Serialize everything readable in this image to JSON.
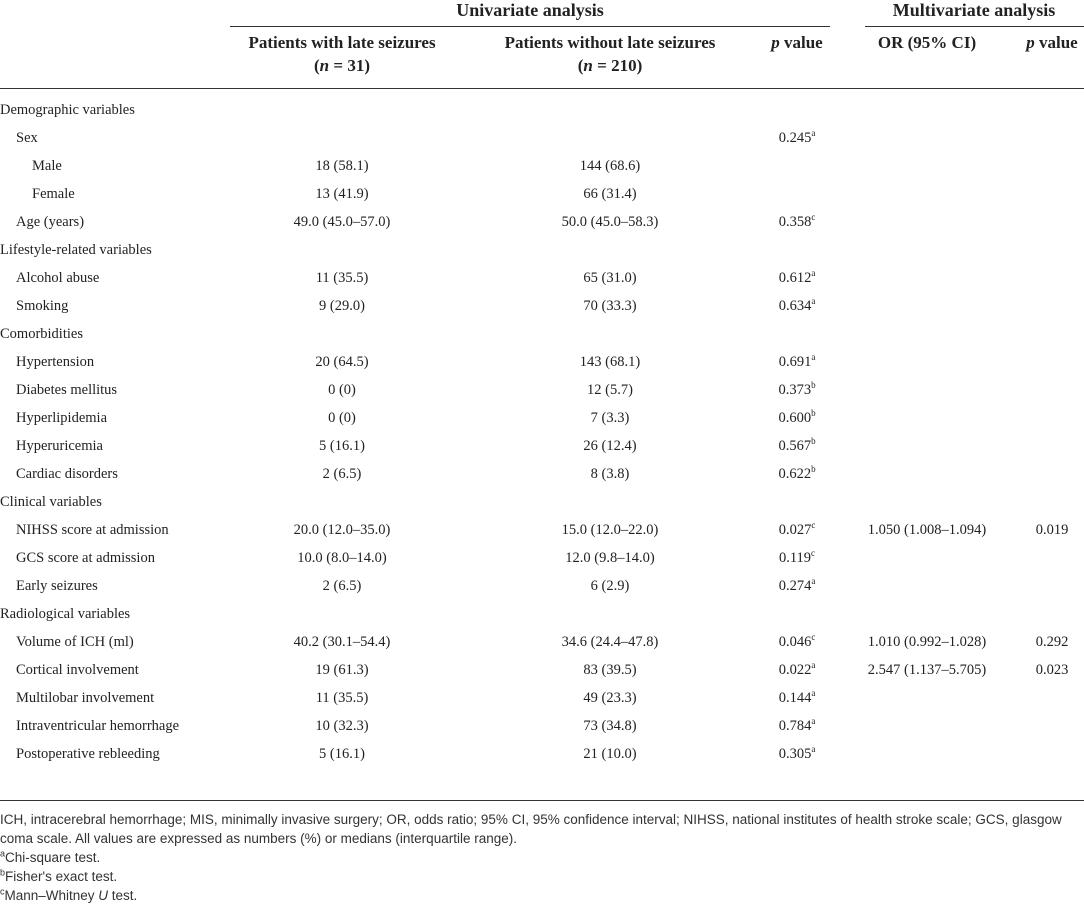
{
  "header": {
    "groups": [
      "Univariate analysis",
      "Multivariate analysis"
    ],
    "columns": [
      {
        "lines": [
          [
            {
              "t": "Patients with late seizures"
            }
          ],
          [
            {
              "t": "("
            },
            {
              "t": "n",
              "italic": true
            },
            {
              "t": " = 31)"
            }
          ]
        ]
      },
      {
        "lines": [
          [
            {
              "t": "Patients without late seizures"
            }
          ],
          [
            {
              "t": "("
            },
            {
              "t": "n",
              "italic": true
            },
            {
              "t": " = 210)"
            }
          ]
        ]
      },
      {
        "lines": [
          [
            {
              "t": "p",
              "italic": true
            },
            {
              "t": " value"
            }
          ]
        ]
      },
      {
        "lines": [
          [
            {
              "t": "OR (95% CI)"
            }
          ]
        ]
      },
      {
        "lines": [
          [
            {
              "t": "p",
              "italic": true
            },
            {
              "t": " value"
            }
          ]
        ]
      }
    ]
  },
  "sections": [
    {
      "title": "Demographic variables",
      "rows": [
        {
          "label": "Sex",
          "p": "0.245",
          "p_note": "a",
          "subrows": [
            {
              "label": "Male",
              "late": "18 (58.1)",
              "without": "144 (68.6)"
            },
            {
              "label": "Female",
              "late": "13 (41.9)",
              "without": "66 (31.4)"
            }
          ]
        },
        {
          "label": "Age (years)",
          "late": "49.0 (45.0–57.0)",
          "without": "50.0 (45.0–58.3)",
          "p": "0.358",
          "p_note": "c"
        }
      ]
    },
    {
      "title": "Lifestyle-related variables",
      "rows": [
        {
          "label": "Alcohol abuse",
          "late": "11 (35.5)",
          "without": "65 (31.0)",
          "p": "0.612",
          "p_note": "a"
        },
        {
          "label": "Smoking",
          "late": "9 (29.0)",
          "without": "70 (33.3)",
          "p": "0.634",
          "p_note": "a"
        }
      ]
    },
    {
      "title": "Comorbidities",
      "rows": [
        {
          "label": "Hypertension",
          "late": "20 (64.5)",
          "without": "143 (68.1)",
          "p": "0.691",
          "p_note": "a"
        },
        {
          "label": "Diabetes mellitus",
          "late": "0 (0)",
          "without": "12 (5.7)",
          "p": "0.373",
          "p_note": "b"
        },
        {
          "label": "Hyperlipidemia",
          "late": "0 (0)",
          "without": "7 (3.3)",
          "p": "0.600",
          "p_note": "b"
        },
        {
          "label": "Hyperuricemia",
          "late": "5 (16.1)",
          "without": "26 (12.4)",
          "p": "0.567",
          "p_note": "b"
        },
        {
          "label": "Cardiac disorders",
          "late": "2 (6.5)",
          "without": "8 (3.8)",
          "p": "0.622",
          "p_note": "b"
        }
      ]
    },
    {
      "title": "Clinical variables",
      "rows": [
        {
          "label": "NIHSS score at admission",
          "late": "20.0 (12.0–35.0)",
          "without": "15.0 (12.0–22.0)",
          "p": "0.027",
          "p_note": "c",
          "or": "1.050 (1.008–1.094)",
          "mp": "0.019"
        },
        {
          "label": "GCS score at admission",
          "late": "10.0 (8.0–14.0)",
          "without": "12.0 (9.8–14.0)",
          "p": "0.119",
          "p_note": "c"
        },
        {
          "label": "Early seizures",
          "late": "2 (6.5)",
          "without": "6 (2.9)",
          "p": "0.274",
          "p_note": "a"
        }
      ]
    },
    {
      "title": "Radiological variables",
      "rows": [
        {
          "label": "Volume of ICH (ml)",
          "late": "40.2 (30.1–54.4)",
          "without": "34.6 (24.4–47.8)",
          "p": "0.046",
          "p_note": "c",
          "or": "1.010 (0.992–1.028)",
          "mp": "0.292"
        },
        {
          "label": "Cortical involvement",
          "late": "19 (61.3)",
          "without": "83 (39.5)",
          "p": "0.022",
          "p_note": "a",
          "or": "2.547 (1.137–5.705)",
          "mp": "0.023"
        },
        {
          "label": "Multilobar involvement",
          "late": "11 (35.5)",
          "without": "49 (23.3)",
          "p": "0.144",
          "p_note": "a"
        },
        {
          "label": "Intraventricular hemorrhage",
          "late": "10 (32.3)",
          "without": "73 (34.8)",
          "p": "0.784",
          "p_note": "a"
        },
        {
          "label": "Postoperative rebleeding",
          "late": "5 (16.1)",
          "without": "21 (10.0)",
          "p": "0.305",
          "p_note": "a"
        }
      ]
    }
  ],
  "footnotes": {
    "abbreviations": "ICH, intracerebral hemorrhage; MIS, minimally invasive surgery; OR, odds ratio; 95% CI, 95% confidence interval; NIHSS, national institutes of health stroke scale; GCS, glasgow coma scale. All values are expressed as numbers (%) or medians (interquartile range).",
    "notes": [
      {
        "mark": "a",
        "runs": [
          {
            "t": "Chi-square test."
          }
        ]
      },
      {
        "mark": "b",
        "runs": [
          {
            "t": "Fisher's exact test."
          }
        ]
      },
      {
        "mark": "c",
        "runs": [
          {
            "t": "Mann–Whitney "
          },
          {
            "t": "U",
            "italic": true
          },
          {
            "t": " test."
          }
        ]
      }
    ]
  }
}
